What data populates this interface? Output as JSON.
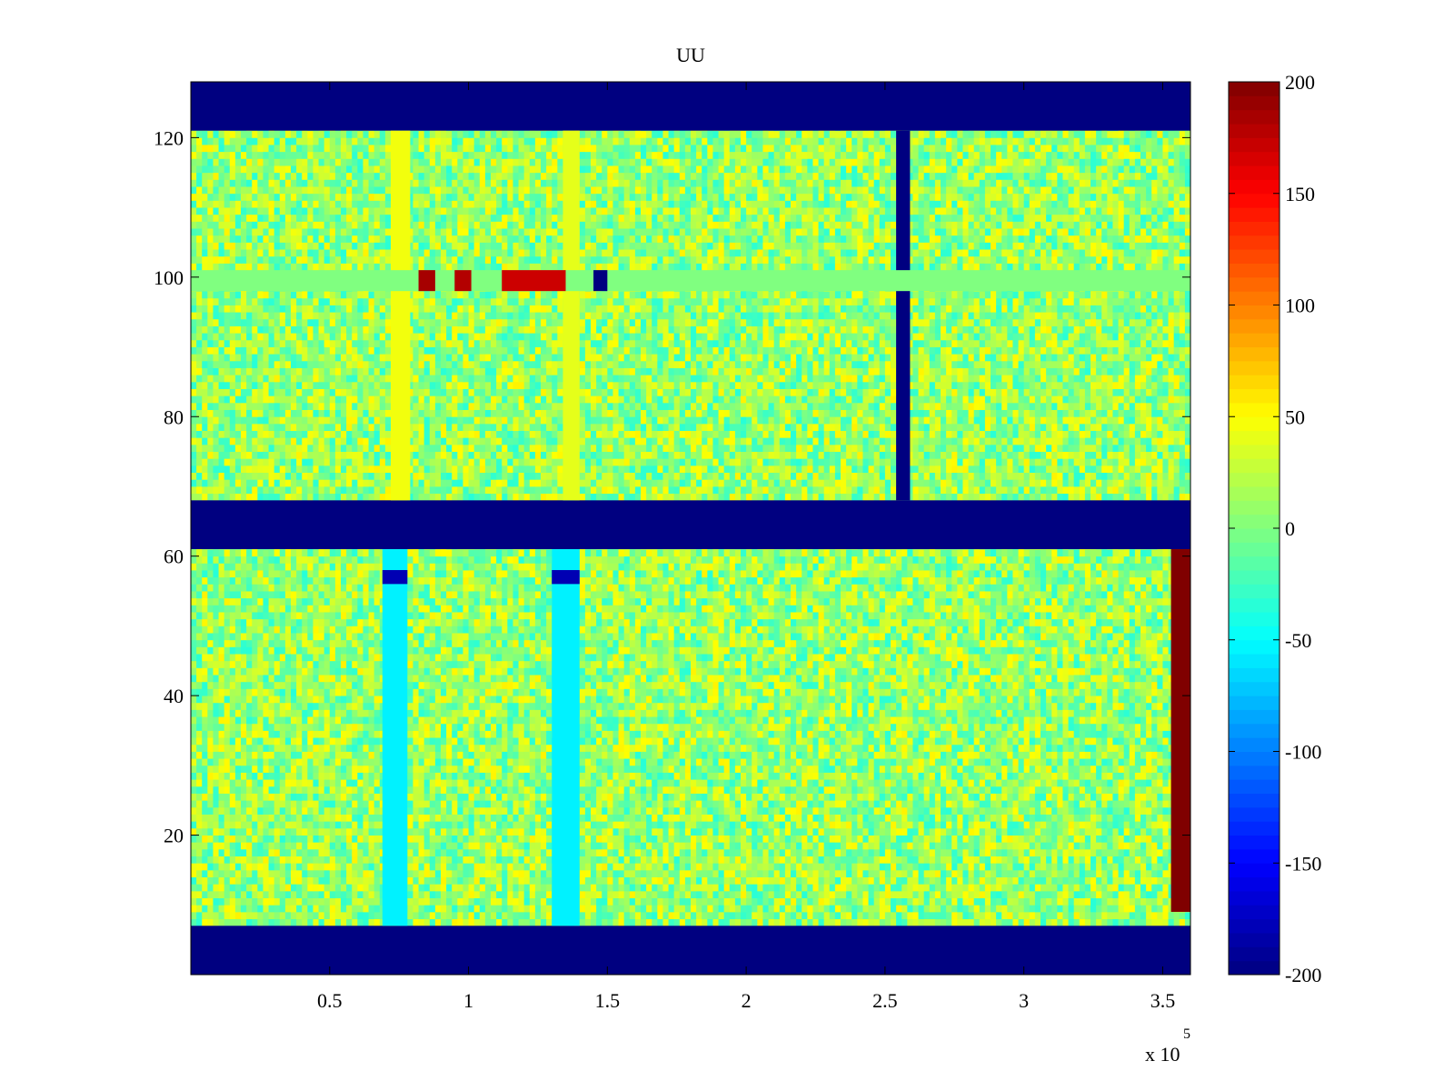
{
  "chart_data": {
    "type": "heatmap",
    "title": "UU",
    "xlabel": "",
    "ylabel": "",
    "x_multiplier_label": "x 10",
    "x_multiplier_exponent": "5",
    "xlim": [
      0,
      360000
    ],
    "ylim": [
      0,
      128
    ],
    "x_ticks": [
      50000,
      100000,
      150000,
      200000,
      250000,
      300000,
      350000
    ],
    "x_tick_labels": [
      "0.5",
      "1",
      "1.5",
      "2",
      "2.5",
      "3",
      "3.5"
    ],
    "y_ticks": [
      20,
      40,
      60,
      80,
      100,
      120
    ],
    "y_tick_labels": [
      "20",
      "40",
      "60",
      "80",
      "100",
      "120"
    ],
    "colormap": "jet",
    "clim": [
      -200,
      200
    ],
    "colorbar_ticks": [
      200,
      150,
      100,
      50,
      0,
      -50,
      -100,
      -150,
      -200
    ],
    "colorbar_tick_labels": [
      "200",
      "150",
      "100",
      "50",
      "0",
      "-50",
      "-100",
      "-150",
      "-200"
    ],
    "background_value": 10,
    "regions": [
      {
        "label": "no data",
        "x": [
          0,
          360000
        ],
        "y": [
          121,
          128
        ],
        "value": -200
      },
      {
        "label": "no data",
        "x": [
          0,
          360000
        ],
        "y": [
          61,
          68
        ],
        "value": -200
      },
      {
        "label": "no data",
        "x": [
          0,
          360000
        ],
        "y": [
          0,
          7
        ],
        "value": -200
      },
      {
        "label": "warm column",
        "x": [
          72000,
          79000
        ],
        "y": [
          68,
          121
        ],
        "value": 45
      },
      {
        "label": "warm column",
        "x": [
          134000,
          140000
        ],
        "y": [
          68,
          121
        ],
        "value": 40
      },
      {
        "label": "cool column",
        "x": [
          69000,
          78000
        ],
        "y": [
          7,
          61
        ],
        "value": -55
      },
      {
        "label": "cool column",
        "x": [
          130000,
          140000
        ],
        "y": [
          7,
          61
        ],
        "value": -55
      },
      {
        "label": "dropout column",
        "x": [
          254000,
          259000
        ],
        "y": [
          68,
          121
        ],
        "value": -200
      },
      {
        "label": "edge anomaly",
        "x": [
          353000,
          360000
        ],
        "y": [
          9,
          61
        ],
        "value": 200
      },
      {
        "label": "noisy row",
        "x": [
          0,
          360000
        ],
        "y": [
          98,
          101
        ],
        "value": 0
      },
      {
        "label": "hot segment",
        "x": [
          82000,
          88000
        ],
        "y": [
          98,
          101
        ],
        "value": 185
      },
      {
        "label": "hot segment",
        "x": [
          95000,
          101000
        ],
        "y": [
          98,
          101
        ],
        "value": 180
      },
      {
        "label": "hot segment",
        "x": [
          112000,
          135000
        ],
        "y": [
          98,
          101
        ],
        "value": 170
      },
      {
        "label": "cold segment",
        "x": [
          145000,
          150000
        ],
        "y": [
          98,
          101
        ],
        "value": -200
      },
      {
        "label": "cold row segment",
        "x": [
          69000,
          78000
        ],
        "y": [
          56,
          58
        ],
        "value": -180
      },
      {
        "label": "cold row segment",
        "x": [
          130000,
          140000
        ],
        "y": [
          56,
          58
        ],
        "value": -180
      }
    ]
  }
}
